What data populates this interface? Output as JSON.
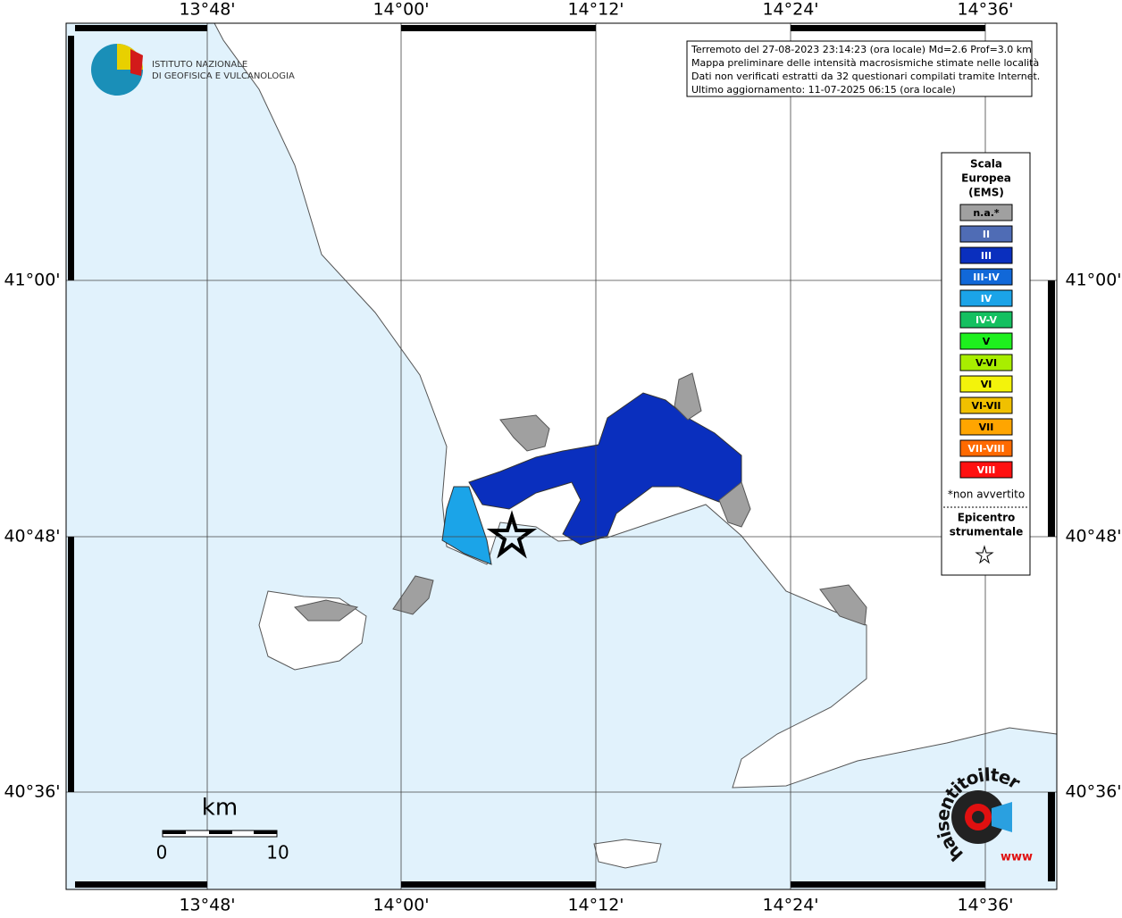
{
  "logo": {
    "line1": "ISTITUTO NAZIONALE",
    "line2": "DI GEOFISICA E VULCANOLOGIA"
  },
  "info": {
    "lines": [
      "Terremoto del 27-08-2023 23:14:23 (ora locale) Md=2.6 Prof=3.0 km",
      "Mappa preliminare delle intensità macrosismiche stimate nelle località",
      "Dati non verificati estratti da 32 questionari compilati tramite Internet.",
      "Ultimo aggiornamento: 11-07-2025 06:15 (ora locale)"
    ]
  },
  "longitude_labels": [
    "13°48'",
    "14°00'",
    "14°12'",
    "14°24'",
    "14°36'"
  ],
  "latitude_labels": [
    "41°00'",
    "40°48'",
    "40°36'"
  ],
  "legend": {
    "title": [
      "Scala",
      "Europea",
      "(EMS)"
    ],
    "items": [
      {
        "label": "n.a.*",
        "color": "#a0a0a0"
      },
      {
        "label": "II",
        "color": "#4f6cb5"
      },
      {
        "label": "III",
        "color": "#0a2fbe"
      },
      {
        "label": "III-IV",
        "color": "#1168d8"
      },
      {
        "label": "IV",
        "color": "#1ba4e8"
      },
      {
        "label": "IV-V",
        "color": "#14c060"
      },
      {
        "label": "V",
        "color": "#1ef01e"
      },
      {
        "label": "V-VI",
        "color": "#a8ee00"
      },
      {
        "label": "VI",
        "color": "#f3f30b"
      },
      {
        "label": "VI-VII",
        "color": "#f0c000"
      },
      {
        "label": "VII",
        "color": "#ffa500"
      },
      {
        "label": "VII-VIII",
        "color": "#ff6a00"
      },
      {
        "label": "VIII",
        "color": "#ff1010"
      }
    ],
    "note": "*non avvertito",
    "epicenter": [
      "Epicentro",
      "strumentale"
    ]
  },
  "scale_bar": {
    "unit": "km",
    "start": "0",
    "end": "10"
  },
  "site_logo": {
    "text": "haisentitoilterremoto.it",
    "www": "www"
  }
}
